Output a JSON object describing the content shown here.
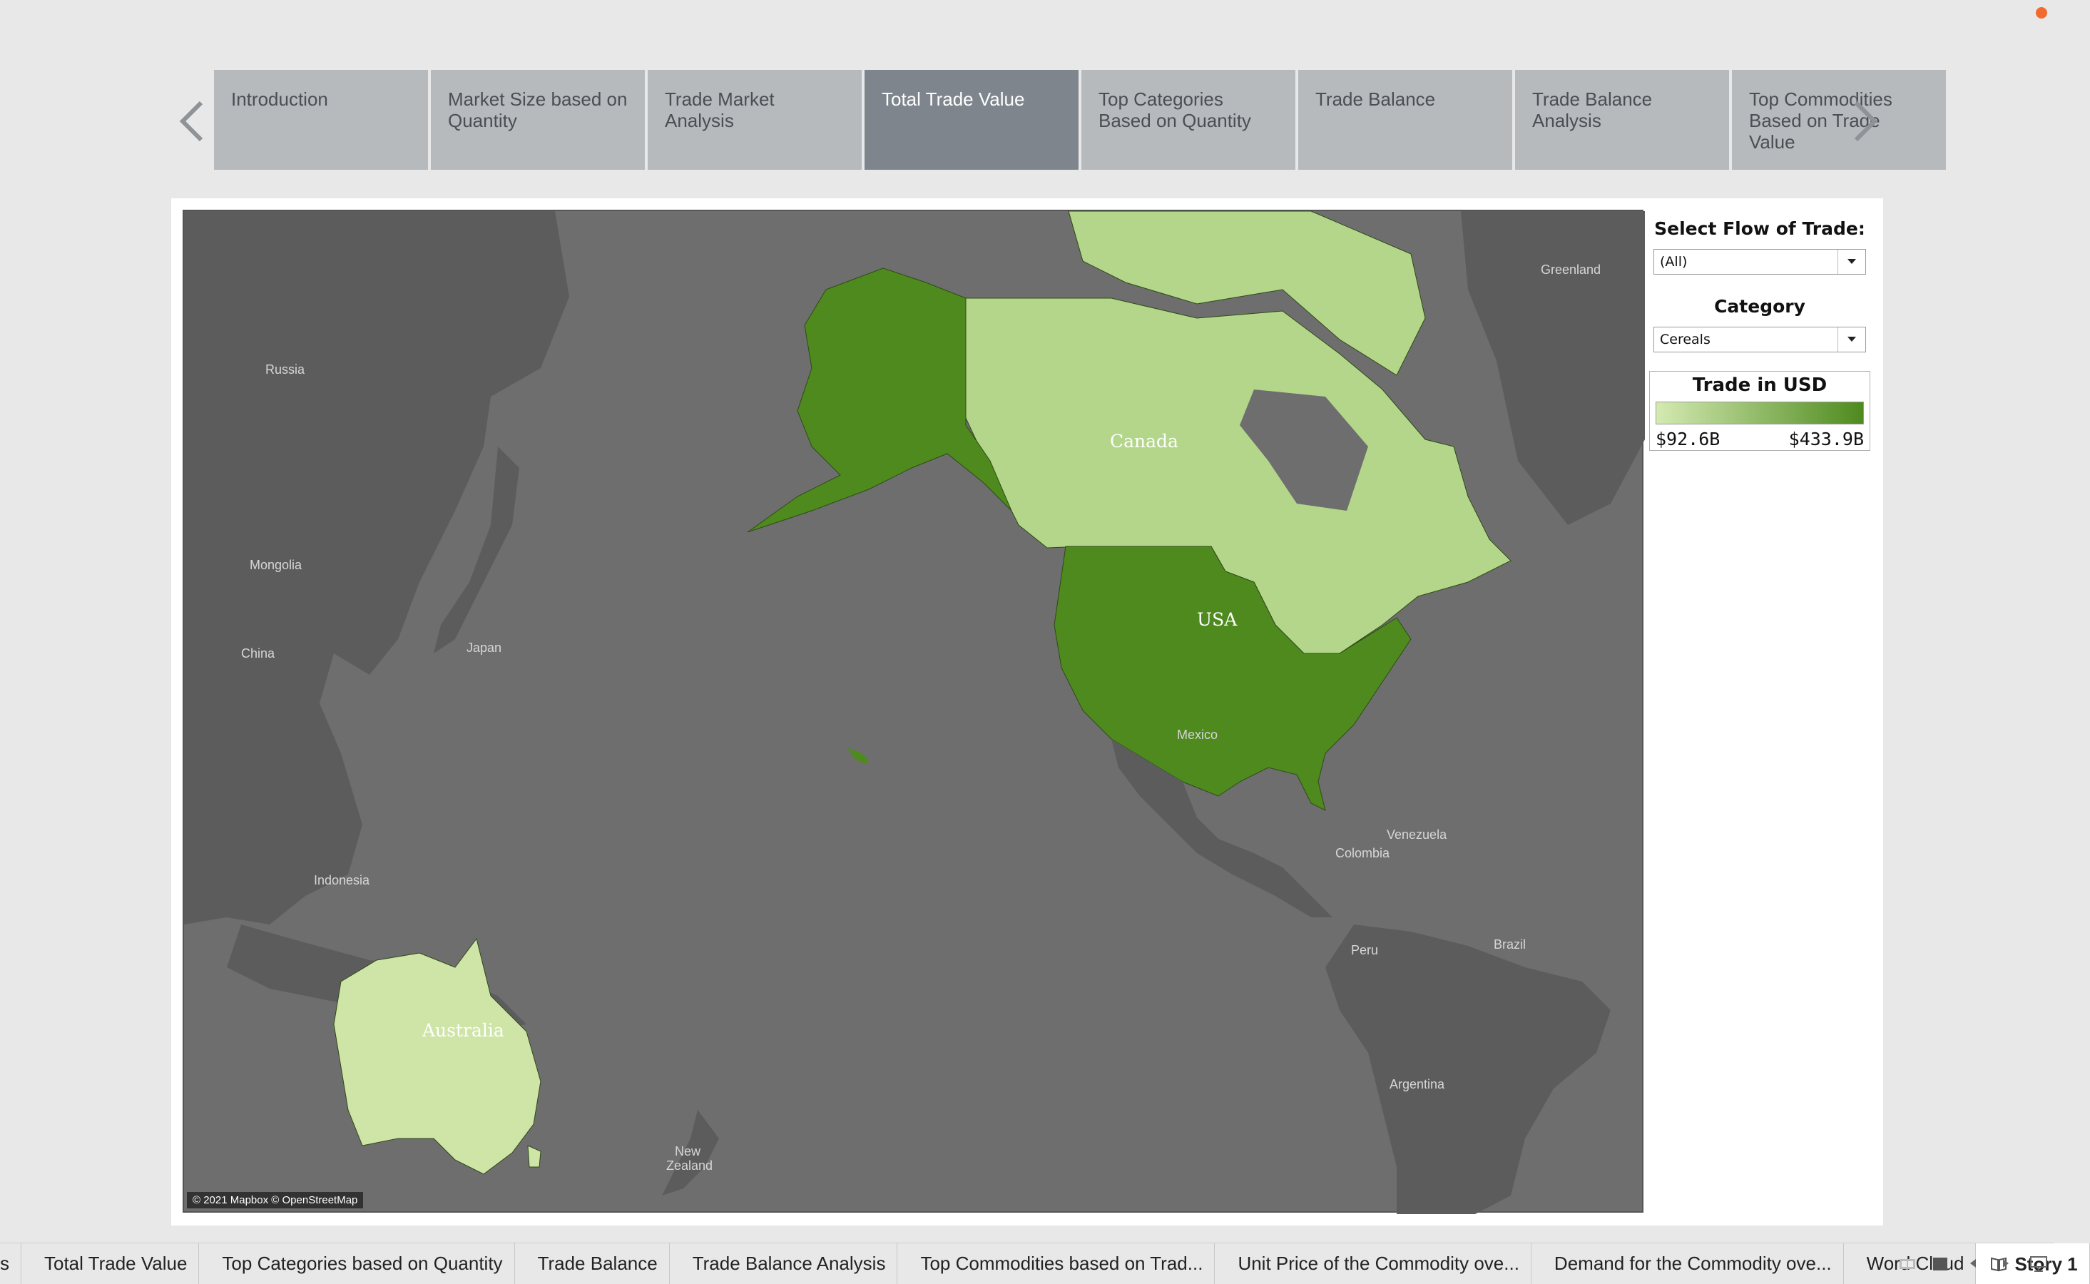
{
  "story_nav": {
    "tabs": [
      {
        "label": "Introduction",
        "active": false
      },
      {
        "label": "Market Size based on Quantity",
        "active": false
      },
      {
        "label": "Trade Market Analysis",
        "active": false
      },
      {
        "label": "Total Trade Value",
        "active": true
      },
      {
        "label": "Top Categories Based on Quantity",
        "active": false
      },
      {
        "label": "Trade Balance",
        "active": false
      },
      {
        "label": "Trade Balance Analysis",
        "active": false
      },
      {
        "label": "Top Commodities Based on Trade Value",
        "active": false
      }
    ],
    "prev_icon": "chevron-left-icon",
    "next_icon": "chevron-right-icon"
  },
  "map": {
    "country_labels": {
      "canada": "Canada",
      "usa": "USA",
      "australia": "Australia"
    },
    "place_labels": {
      "greenland": "Greenland",
      "russia": "Russia",
      "mongolia": "Mongolia",
      "china": "China",
      "japan": "Japan",
      "indonesia": "Indonesia",
      "mexico": "Mexico",
      "venezuela": "Venezuela",
      "colombia": "Colombia",
      "peru": "Peru",
      "brazil": "Brazil",
      "argentina": "Argentina",
      "new_zealand": "New Zealand"
    },
    "attribution": "© 2021 Mapbox © OpenStreetMap",
    "fill_colors": {
      "usa": "#4e8a1e",
      "alaska": "#4e8a1e",
      "canada": "#b3d68a",
      "australia": "#cfe5a8",
      "ocean": "#6e6e6e",
      "land": "#5c5c5c"
    }
  },
  "filters": {
    "flow": {
      "title": "Select Flow of Trade:",
      "value": "(All)"
    },
    "category": {
      "title": "Category",
      "value": "Cereals"
    }
  },
  "legend": {
    "title": "Trade in USD",
    "min": "$92.6B",
    "max": "$433.9B",
    "color_min": "#d4eab2",
    "color_max": "#4e8a1e"
  },
  "bottom_tabs": {
    "items": [
      "s",
      "Total Trade Value",
      "Top Categories based on Quantity",
      "Trade Balance",
      "Trade Balance Analysis",
      "Top Commodities based on Trad...",
      "Unit Price of the Commodity ove...",
      "Demand for the Commodity ove...",
      "Word Cloud"
    ],
    "story": "Story 1"
  }
}
